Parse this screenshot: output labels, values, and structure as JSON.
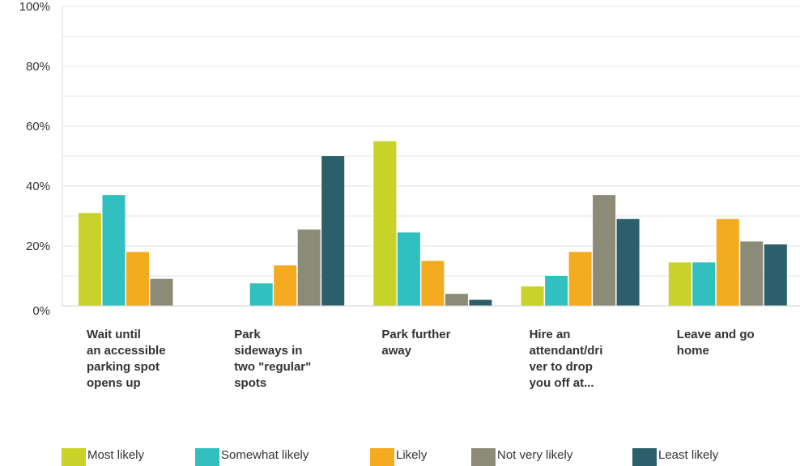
{
  "chart_data": {
    "type": "bar",
    "title": "",
    "xlabel": "",
    "ylabel": "",
    "ylim": [
      0,
      100
    ],
    "yticks": [
      0,
      20,
      40,
      60,
      80,
      100
    ],
    "ytick_labels": [
      "0%",
      "20%",
      "40%",
      "60%",
      "80%",
      "100%"
    ],
    "grid": true,
    "legend_position": "bottom",
    "categories": [
      [
        "Wait until",
        "an accessible",
        "parking spot",
        "opens up"
      ],
      [
        "Park",
        "sideways in",
        "two \"regular\"",
        "spots"
      ],
      [
        "Park further",
        "away"
      ],
      [
        "Hire an",
        "attendant/dri",
        "ver to drop",
        "you off at..."
      ],
      [
        "Leave and go",
        "home"
      ]
    ],
    "series": [
      {
        "name": "Most likely",
        "color": "#c8d329",
        "values": [
          31,
          0,
          55,
          6.5,
          14.5
        ]
      },
      {
        "name": "Somewhat likely",
        "color": "#31bfbf",
        "values": [
          37,
          7.5,
          24.5,
          10,
          14.5
        ]
      },
      {
        "name": "Likely",
        "color": "#f5ab1f",
        "values": [
          18,
          13.5,
          15,
          18,
          29
        ]
      },
      {
        "name": "Not very likely",
        "color": "#8b8b78",
        "values": [
          9,
          25.5,
          4,
          37,
          21.5
        ]
      },
      {
        "name": "Least likely",
        "color": "#2b5f6b",
        "values": [
          0,
          50,
          2,
          29,
          20.5
        ]
      }
    ]
  }
}
